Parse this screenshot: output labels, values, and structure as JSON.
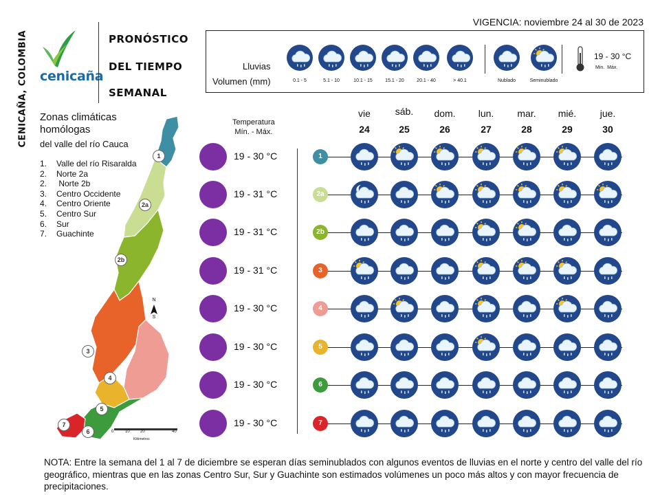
{
  "side_label": "CENICAÑA, COLOMBIA",
  "logo_text": "cenicaña",
  "title": [
    "PRONÓSTICO",
    "DEL TIEMPO",
    "SEMANAL"
  ],
  "vigencia": "VIGENCIA: noviembre 24 al 30 de 2023",
  "legend": {
    "lluvias_label": "Lluvias",
    "volumen_label": "Volumen (mm)",
    "ranges": [
      "0.1 - 5",
      "5.1 - 10",
      "10.1 - 15",
      "15.1 - 20",
      "20.1 - 40",
      "> 40.1"
    ],
    "nublado_label": "Nublado",
    "seminublado_label": "Seminublado",
    "temp_example": "19 - 30 °C",
    "min_max_label": "Min.  Máx."
  },
  "zones_panel": {
    "title_line1": "Zonas climáticas",
    "title_line2": "homólogas",
    "subtitle": "del valle del río Cauca",
    "items": [
      {
        "n": "1.",
        "name": "Valle del río Risaralda"
      },
      {
        "n": "2.",
        "name": "Norte 2a"
      },
      {
        "n": "2.",
        "name": " Norte 2b"
      },
      {
        "n": "3.",
        "name": "Centro Occidente"
      },
      {
        "n": "4.",
        "name": "Centro Oriente"
      },
      {
        "n": "5.",
        "name": "Centro Sur"
      },
      {
        "n": "6.",
        "name": "Sur"
      },
      {
        "n": "7.",
        "name": "Guachinte"
      }
    ],
    "map_labels": [
      "1",
      "2a",
      "2b",
      "3",
      "4",
      "5",
      "6",
      "7"
    ],
    "scale_ticks": [
      "0",
      "10",
      "20",
      "40"
    ],
    "scale_unit": "Kilómetros",
    "north_letter": "N",
    "south_letter": "S"
  },
  "temp_header": {
    "line1": "Temperatura",
    "line2": "Mín. -  Máx."
  },
  "days": [
    {
      "name": "vie",
      "num": "24"
    },
    {
      "name": "sáb.",
      "num": "25"
    },
    {
      "name": "dom.",
      "num": "26"
    },
    {
      "name": "lun.",
      "num": "27"
    },
    {
      "name": "mar.",
      "num": "28"
    },
    {
      "name": "mié.",
      "num": "29"
    },
    {
      "name": "jue.",
      "num": "30"
    }
  ],
  "rows": [
    {
      "zone": "1",
      "color": "#3e8fa3",
      "temp": "19 - 30 °C",
      "icons": [
        "rain",
        "sun",
        "sun",
        "sun",
        "sun",
        "sun",
        "rain"
      ]
    },
    {
      "zone": "2a",
      "color": "#c9dd93",
      "temp": "19 - 31 °C",
      "icons": [
        "moon",
        "rain",
        "sun",
        "sun",
        "sun",
        "sun",
        "sun"
      ]
    },
    {
      "zone": "2b",
      "color": "#8ab52c",
      "temp": "19 - 31 °C",
      "icons": [
        "rain",
        "rain",
        "rain",
        "sun",
        "sun",
        "rain",
        "rain"
      ]
    },
    {
      "zone": "3",
      "color": "#e8632a",
      "temp": "19 - 31 °C",
      "icons": [
        "sun",
        "rain",
        "rain",
        "sun",
        "sun",
        "sun",
        "rain"
      ]
    },
    {
      "zone": "4",
      "color": "#ef9c94",
      "temp": "19 - 30 °C",
      "icons": [
        "rain",
        "sun",
        "rain",
        "sun",
        "rain",
        "sun",
        "rain"
      ]
    },
    {
      "zone": "5",
      "color": "#eab32c",
      "temp": "19 - 30 °C",
      "icons": [
        "rain",
        "rain",
        "rain",
        "sun",
        "rain",
        "rain",
        "rain"
      ]
    },
    {
      "zone": "6",
      "color": "#3d9a3d",
      "temp": "19 - 30 °C",
      "icons": [
        "rain",
        "rain",
        "rain",
        "rain",
        "rain",
        "rain",
        "rain"
      ]
    },
    {
      "zone": "7",
      "color": "#d9252a",
      "temp": "19 - 30 °C",
      "icons": [
        "rain",
        "rain",
        "rain",
        "rain",
        "rain",
        "rain",
        "rain"
      ]
    }
  ],
  "nota": "NOTA: Entre la semana del 1 al 7 de diciembre se esperan días seminublados con algunos eventos de lluvias en el norte y centro del valle del río geográfico,  mientras que en las zonas Centro Sur, Sur y Guachinte son estimados volúmenes un poco más altos y con mayor frecuencia de precipitaciones."
}
